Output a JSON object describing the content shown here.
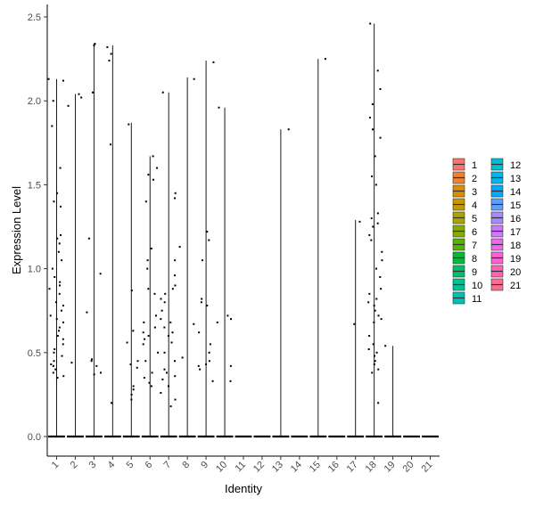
{
  "chart_data": {
    "type": "violin",
    "xlabel": "Identity",
    "ylabel": "Expression Level",
    "ylim": [
      0,
      2.55
    ],
    "yticks": [
      "0.0",
      "0.5",
      "1.0",
      "1.5",
      "2.0",
      "2.5"
    ],
    "categories": [
      "1",
      "2",
      "3",
      "4",
      "5",
      "6",
      "7",
      "8",
      "9",
      "10",
      "11",
      "12",
      "13",
      "14",
      "15",
      "16",
      "17",
      "18",
      "19",
      "20",
      "21"
    ],
    "legend": {
      "position": "right",
      "columns": 2,
      "entries": [
        {
          "label": "1",
          "color": "#F8766D"
        },
        {
          "label": "2",
          "color": "#EB8335"
        },
        {
          "label": "3",
          "color": "#DA8F00"
        },
        {
          "label": "4",
          "color": "#C49A00"
        },
        {
          "label": "5",
          "color": "#A9A400"
        },
        {
          "label": "6",
          "color": "#86AC00"
        },
        {
          "label": "7",
          "color": "#53B400"
        },
        {
          "label": "8",
          "color": "#00BA38"
        },
        {
          "label": "9",
          "color": "#00BE6C"
        },
        {
          "label": "10",
          "color": "#00C094"
        },
        {
          "label": "11",
          "color": "#00C0B5"
        },
        {
          "label": "12",
          "color": "#00BDD2"
        },
        {
          "label": "13",
          "color": "#00B6EB"
        },
        {
          "label": "14",
          "color": "#00A9FF"
        },
        {
          "label": "15",
          "color": "#619CFF"
        },
        {
          "label": "16",
          "color": "#A58AFF"
        },
        {
          "label": "17",
          "color": "#D077FF"
        },
        {
          "label": "18",
          "color": "#EE67EE"
        },
        {
          "label": "19",
          "color": "#FD61D3"
        },
        {
          "label": "20",
          "color": "#FF62B0"
        },
        {
          "label": "21",
          "color": "#FF6C91"
        }
      ]
    },
    "series": [
      {
        "category": "1",
        "max": 2.13,
        "points": [
          2.13,
          2.12,
          2.0,
          1.85,
          1.6,
          1.45,
          1.4,
          1.37,
          1.2,
          1.18,
          1.15,
          1.1,
          1.05,
          1.0,
          0.95,
          0.92,
          0.9,
          0.88,
          0.85,
          0.8,
          0.78,
          0.75,
          0.72,
          0.7,
          0.68,
          0.65,
          0.63,
          0.6,
          0.58,
          0.55,
          0.52,
          0.5,
          0.48,
          0.45,
          0.43,
          0.42,
          0.4,
          0.38,
          0.36,
          0.35
        ]
      },
      {
        "category": "2",
        "max": 2.04,
        "points": [
          2.04,
          2.02,
          1.97,
          0.44
        ]
      },
      {
        "category": "3",
        "max": 2.34,
        "points": [
          2.34,
          2.33,
          2.05,
          1.18,
          0.97,
          0.74,
          0.46,
          0.45,
          0.42,
          0.38,
          0.37
        ]
      },
      {
        "category": "4",
        "max": 2.33,
        "points": [
          2.32,
          2.28,
          2.24,
          1.74,
          0.2
        ]
      },
      {
        "category": "5",
        "max": 1.87,
        "points": [
          1.86,
          0.87,
          0.63,
          0.56,
          0.45,
          0.43,
          0.41,
          0.3,
          0.28,
          0.25,
          0.22
        ]
      },
      {
        "category": "6",
        "max": 1.67,
        "points": [
          1.67,
          1.6,
          1.56,
          1.53,
          1.4,
          1.12,
          1.05,
          1.0,
          0.88,
          0.85,
          0.72,
          0.68,
          0.65,
          0.62,
          0.6,
          0.58,
          0.55,
          0.5,
          0.45,
          0.38,
          0.35,
          0.32,
          0.3
        ]
      },
      {
        "category": "7",
        "max": 2.05,
        "points": [
          2.05,
          1.45,
          1.42,
          1.05,
          0.96,
          0.9,
          0.88,
          0.85,
          0.82,
          0.8,
          0.75,
          0.7,
          0.68,
          0.65,
          0.62,
          0.6,
          0.56,
          0.5,
          0.45,
          0.4,
          0.38,
          0.36,
          0.34,
          0.3,
          0.26,
          0.22,
          0.18
        ]
      },
      {
        "category": "8",
        "max": 2.14,
        "points": [
          2.13,
          1.13,
          0.67,
          0.47
        ]
      },
      {
        "category": "9",
        "max": 2.24,
        "points": [
          2.23,
          1.22,
          1.17,
          1.05,
          0.82,
          0.8,
          0.78,
          0.62,
          0.55,
          0.5,
          0.45,
          0.43,
          0.42,
          0.4,
          0.33
        ]
      },
      {
        "category": "10",
        "max": 1.96,
        "points": [
          1.96,
          0.72,
          0.7,
          0.68,
          0.42,
          0.33
        ]
      },
      {
        "category": "11",
        "max": 0,
        "points": []
      },
      {
        "category": "12",
        "max": 0,
        "points": []
      },
      {
        "category": "13",
        "max": 1.83,
        "points": [
          1.83
        ]
      },
      {
        "category": "14",
        "max": 0,
        "points": []
      },
      {
        "category": "15",
        "max": 2.25,
        "points": [
          2.25
        ]
      },
      {
        "category": "16",
        "max": 0,
        "points": []
      },
      {
        "category": "17",
        "max": 1.29,
        "points": [
          1.28,
          0.67
        ]
      },
      {
        "category": "18",
        "max": 2.46,
        "points": [
          2.46,
          2.18,
          2.07,
          1.98,
          1.9,
          1.83,
          1.78,
          1.67,
          1.55,
          1.5,
          1.33,
          1.3,
          1.27,
          1.25,
          1.2,
          1.17,
          1.1,
          1.05,
          1.0,
          0.95,
          0.88,
          0.85,
          0.82,
          0.8,
          0.78,
          0.75,
          0.72,
          0.7,
          0.68,
          0.6,
          0.55,
          0.52,
          0.5,
          0.48,
          0.45,
          0.43,
          0.4,
          0.38,
          0.2
        ]
      },
      {
        "category": "19",
        "max": 0.54,
        "points": [
          0.54
        ]
      },
      {
        "category": "20",
        "max": 0,
        "points": []
      },
      {
        "category": "21",
        "max": 0,
        "points": []
      }
    ]
  }
}
